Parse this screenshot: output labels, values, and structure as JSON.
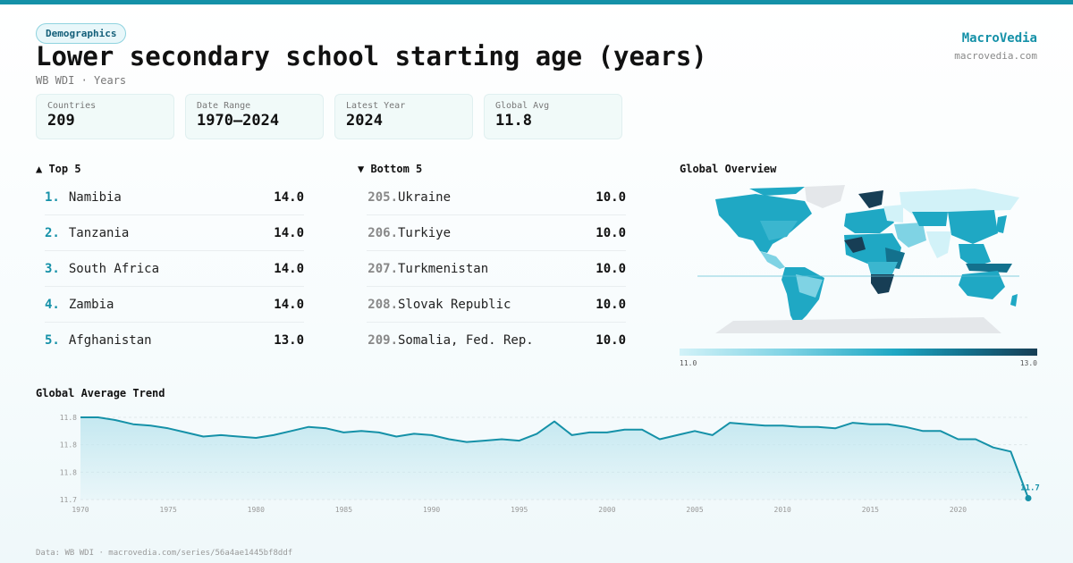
{
  "header": {
    "category": "Demographics",
    "title": "Lower secondary school starting age (years)",
    "subtitle": "WB WDI · Years",
    "brand_name": "MacroVedia",
    "brand_url": "macrovedia.com"
  },
  "stats": [
    {
      "label": "Countries",
      "value": "209"
    },
    {
      "label": "Date Range",
      "value": "1970–2024"
    },
    {
      "label": "Latest Year",
      "value": "2024"
    },
    {
      "label": "Global Avg",
      "value": "11.8"
    }
  ],
  "top5": {
    "heading": "▲ Top 5",
    "items": [
      {
        "rank": "1.",
        "name": "Namibia",
        "value": "14.0"
      },
      {
        "rank": "2.",
        "name": "Tanzania",
        "value": "14.0"
      },
      {
        "rank": "3.",
        "name": "South Africa",
        "value": "14.0"
      },
      {
        "rank": "4.",
        "name": "Zambia",
        "value": "14.0"
      },
      {
        "rank": "5.",
        "name": "Afghanistan",
        "value": "13.0"
      }
    ]
  },
  "bottom5": {
    "heading": "▼ Bottom 5",
    "items": [
      {
        "rank": "205.",
        "name": "Ukraine",
        "value": "10.0"
      },
      {
        "rank": "206.",
        "name": "Turkiye",
        "value": "10.0"
      },
      {
        "rank": "207.",
        "name": "Turkmenistan",
        "value": "10.0"
      },
      {
        "rank": "208.",
        "name": "Slovak Republic",
        "value": "10.0"
      },
      {
        "rank": "209.",
        "name": "Somalia, Fed. Rep.",
        "value": "10.0"
      }
    ]
  },
  "map": {
    "heading": "Global Overview",
    "legend_min": "11.0",
    "legend_max": "13.0",
    "colors": {
      "low": "#d2f2f8",
      "mid": "#1fa8c4",
      "high": "#173e55",
      "nodata": "#e4e7ea"
    }
  },
  "trend_heading": "Global Average Trend",
  "footer": "Data: WB WDI · macrovedia.com/series/56a4ae1445bf8ddf",
  "colors": {
    "accent": "#1591a8",
    "line": "#1591a8",
    "fill": "#bfe6ef"
  },
  "chart_data": {
    "type": "area",
    "title": "Global Average Trend",
    "xlabel": "",
    "ylabel": "",
    "x_ticks": [
      1970,
      1975,
      1980,
      1985,
      1990,
      1995,
      2000,
      2005,
      2010,
      2015,
      2020
    ],
    "y_tick_labels": [
      "11.8",
      "11.8",
      "11.8",
      "11.7"
    ],
    "y_tick_values": [
      11.8,
      11.78,
      11.76,
      11.74
    ],
    "ylim": [
      11.74,
      11.8
    ],
    "grid": true,
    "end_label": "11.7",
    "x": [
      1970,
      1971,
      1972,
      1973,
      1974,
      1975,
      1976,
      1977,
      1978,
      1979,
      1980,
      1981,
      1982,
      1983,
      1984,
      1985,
      1986,
      1987,
      1988,
      1989,
      1990,
      1991,
      1992,
      1993,
      1994,
      1995,
      1996,
      1997,
      1998,
      1999,
      2000,
      2001,
      2002,
      2003,
      2004,
      2005,
      2006,
      2007,
      2008,
      2009,
      2010,
      2011,
      2012,
      2013,
      2014,
      2015,
      2016,
      2017,
      2018,
      2019,
      2020,
      2021,
      2022,
      2023,
      2024
    ],
    "values": [
      11.8,
      11.8,
      11.798,
      11.795,
      11.794,
      11.792,
      11.789,
      11.786,
      11.787,
      11.786,
      11.785,
      11.787,
      11.79,
      11.793,
      11.792,
      11.789,
      11.79,
      11.789,
      11.786,
      11.788,
      11.787,
      11.784,
      11.782,
      11.783,
      11.784,
      11.783,
      11.788,
      11.797,
      11.787,
      11.789,
      11.789,
      11.791,
      11.791,
      11.784,
      11.787,
      11.79,
      11.787,
      11.796,
      11.795,
      11.794,
      11.794,
      11.793,
      11.793,
      11.792,
      11.796,
      11.795,
      11.795,
      11.793,
      11.79,
      11.79,
      11.784,
      11.784,
      11.778,
      11.775,
      11.741
    ]
  }
}
